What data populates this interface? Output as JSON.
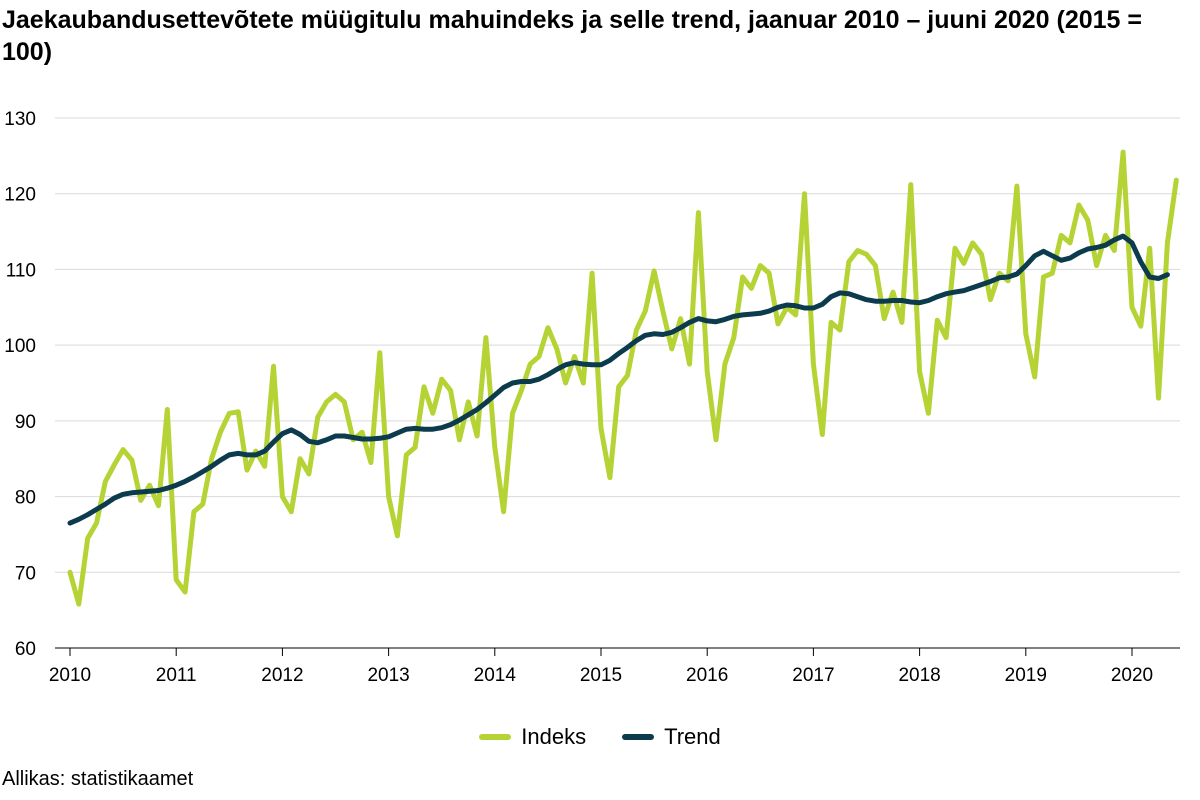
{
  "chart_data": {
    "type": "line",
    "title": "Jaekaubandusettevõtete müügitulu mahuindeks ja selle trend, jaanuar 2010 – juuni 2020 (2015 = 100)",
    "xlabel": "",
    "ylabel": "",
    "ylim": [
      60,
      130
    ],
    "yticks": [
      60,
      70,
      80,
      90,
      100,
      110,
      120,
      130
    ],
    "xtick_labels": [
      "2010",
      "2011",
      "2012",
      "2013",
      "2014",
      "2015",
      "2016",
      "2017",
      "2018",
      "2019",
      "2020"
    ],
    "x_start": "2010-01",
    "x_frequency": "monthly",
    "grid": "horizontal",
    "legend_position": "bottom",
    "series": [
      {
        "name": "Indeks",
        "color": "#b5d334",
        "values": [
          70.0,
          65.8,
          74.5,
          76.5,
          82.0,
          84.2,
          86.2,
          84.8,
          79.5,
          81.5,
          78.8,
          91.5,
          69.0,
          67.4,
          78.0,
          79.0,
          85.0,
          88.5,
          91.0,
          91.2,
          83.5,
          86.0,
          84.0,
          97.2,
          80.0,
          78.0,
          85.0,
          83.0,
          90.5,
          92.5,
          93.5,
          92.5,
          87.5,
          88.5,
          84.5,
          99.0,
          80.0,
          74.8,
          85.5,
          86.5,
          94.5,
          91.0,
          95.5,
          94.0,
          87.5,
          92.5,
          88.0,
          101.0,
          86.5,
          78.0,
          91.0,
          94.0,
          97.5,
          98.5,
          102.3,
          99.5,
          95.0,
          98.5,
          95.0,
          109.5,
          89.0,
          82.5,
          94.5,
          96.0,
          102.0,
          104.5,
          109.8,
          104.5,
          99.5,
          103.5,
          97.5,
          117.5,
          96.5,
          87.5,
          97.5,
          101.0,
          109.0,
          107.5,
          110.5,
          109.5,
          102.8,
          105.0,
          104.0,
          120.0,
          97.5,
          88.2,
          103.0,
          102.0,
          111.0,
          112.5,
          112.0,
          110.5,
          103.5,
          107.0,
          103.0,
          121.2,
          96.5,
          91.0,
          103.3,
          101.0,
          112.8,
          110.8,
          113.5,
          112.0,
          106.0,
          109.5,
          108.5,
          121.0,
          101.5,
          95.8,
          109.0,
          109.5,
          114.5,
          113.5,
          118.5,
          116.5,
          110.5,
          114.5,
          112.5,
          125.5,
          105.0,
          102.5,
          112.8,
          93.0,
          113.5,
          121.8
        ]
      },
      {
        "name": "Trend",
        "color": "#0d3b4e",
        "values": [
          76.5,
          77.0,
          77.6,
          78.3,
          79.0,
          79.8,
          80.3,
          80.5,
          80.6,
          80.7,
          80.8,
          81.1,
          81.5,
          82.0,
          82.6,
          83.3,
          84.0,
          84.8,
          85.5,
          85.7,
          85.5,
          85.5,
          86.0,
          87.2,
          88.3,
          88.8,
          88.2,
          87.3,
          87.1,
          87.5,
          88.0,
          88.0,
          87.8,
          87.6,
          87.6,
          87.7,
          87.9,
          88.4,
          88.9,
          89.0,
          88.9,
          88.9,
          89.1,
          89.5,
          90.1,
          90.8,
          91.5,
          92.4,
          93.4,
          94.4,
          95.0,
          95.2,
          95.2,
          95.5,
          96.1,
          96.8,
          97.4,
          97.7,
          97.5,
          97.4,
          97.4,
          98.0,
          98.9,
          99.7,
          100.6,
          101.3,
          101.5,
          101.4,
          101.7,
          102.3,
          103.0,
          103.5,
          103.2,
          103.1,
          103.4,
          103.8,
          104.0,
          104.1,
          104.2,
          104.5,
          105.0,
          105.3,
          105.2,
          104.9,
          104.9,
          105.4,
          106.4,
          106.9,
          106.8,
          106.4,
          106.0,
          105.8,
          105.8,
          105.9,
          105.9,
          105.7,
          105.6,
          105.9,
          106.4,
          106.8,
          107.0,
          107.2,
          107.6,
          108.0,
          108.4,
          108.9,
          109.0,
          109.4,
          110.5,
          111.8,
          112.4,
          111.8,
          111.2,
          111.5,
          112.2,
          112.7,
          112.9,
          113.2,
          113.9,
          114.4,
          113.5,
          111.0,
          109.0,
          108.8,
          109.3
        ]
      }
    ]
  },
  "source": "Allikas: statistikaamet"
}
